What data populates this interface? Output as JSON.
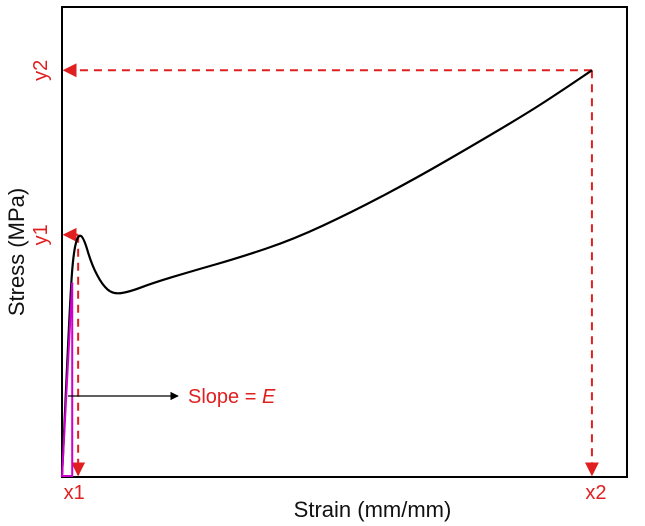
{
  "chart_data": {
    "type": "line",
    "xlabel": "Strain (mm/mm)",
    "ylabel": "Stress (MPa)",
    "xlim": [
      0,
      1
    ],
    "ylim": [
      0,
      1
    ],
    "ticks_shown": false,
    "grid": false,
    "series": [
      {
        "color": "#000000",
        "points": [
          [
            0.0,
            0.0
          ],
          [
            0.016,
            0.41
          ],
          [
            0.022,
            0.495
          ],
          [
            0.03,
            0.53
          ],
          [
            0.04,
            0.525
          ],
          [
            0.055,
            0.465
          ],
          [
            0.075,
            0.42
          ],
          [
            0.095,
            0.4
          ],
          [
            0.125,
            0.405
          ],
          [
            0.17,
            0.425
          ],
          [
            0.24,
            0.45
          ],
          [
            0.33,
            0.48
          ],
          [
            0.43,
            0.52
          ],
          [
            0.54,
            0.58
          ],
          [
            0.66,
            0.655
          ],
          [
            0.77,
            0.73
          ],
          [
            0.87,
            0.8
          ],
          [
            0.935,
            0.85
          ],
          [
            0.985,
            0.89
          ]
        ]
      }
    ],
    "slope_line": {
      "color": "#cc00cc",
      "from": [
        0.0,
        0.0
      ],
      "to": [
        0.019,
        0.425
      ]
    },
    "markers": {
      "x1": {
        "label": "x1",
        "x": 0.03
      },
      "y1": {
        "label": "y1",
        "y": 0.53
      },
      "x2": {
        "label": "x2",
        "x": 0.985
      },
      "y2": {
        "label": "y2",
        "y": 0.89
      }
    },
    "annotation": {
      "text_prefix": "Slope = ",
      "text_italic": "E"
    },
    "colors": {
      "marker": "#e02020",
      "curve": "#000000",
      "slope": "#cc00cc",
      "arrow": "#000000"
    }
  }
}
